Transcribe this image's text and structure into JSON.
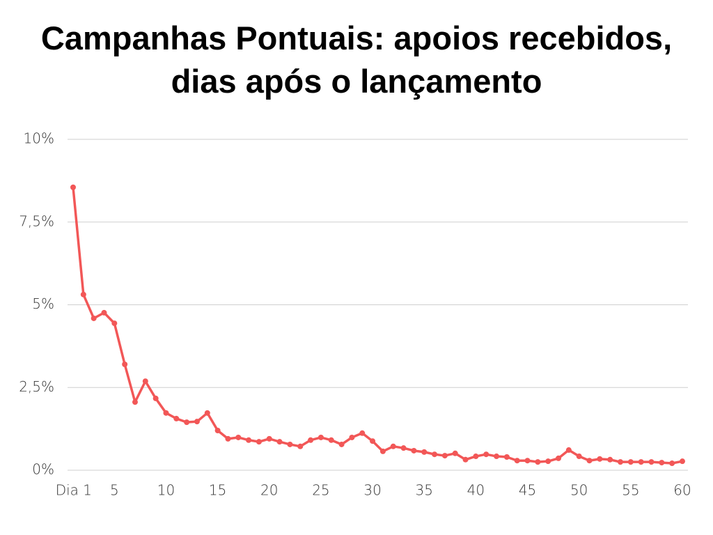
{
  "chart_data": {
    "type": "line",
    "title": "Campanhas Pontuais: apoios recebidos, dias após o lançamento",
    "x": [
      1,
      2,
      3,
      4,
      5,
      6,
      7,
      8,
      9,
      10,
      11,
      12,
      13,
      14,
      15,
      16,
      17,
      18,
      19,
      20,
      21,
      22,
      23,
      24,
      25,
      26,
      27,
      28,
      29,
      30,
      31,
      32,
      33,
      34,
      35,
      36,
      37,
      38,
      39,
      40,
      41,
      42,
      43,
      44,
      45,
      46,
      47,
      48,
      49,
      50,
      51,
      52,
      53,
      54,
      55,
      56,
      57,
      58,
      59,
      60
    ],
    "series": [
      {
        "color": "#f25757",
        "values": [
          8.55,
          5.31,
          4.59,
          4.76,
          4.44,
          3.2,
          2.06,
          2.69,
          2.17,
          1.73,
          1.56,
          1.45,
          1.47,
          1.73,
          1.2,
          0.95,
          0.99,
          0.91,
          0.86,
          0.95,
          0.86,
          0.78,
          0.72,
          0.91,
          0.99,
          0.91,
          0.78,
          0.99,
          1.12,
          0.88,
          0.57,
          0.72,
          0.67,
          0.59,
          0.55,
          0.48,
          0.44,
          0.51,
          0.32,
          0.42,
          0.48,
          0.42,
          0.4,
          0.29,
          0.29,
          0.25,
          0.27,
          0.36,
          0.61,
          0.42,
          0.29,
          0.34,
          0.32,
          0.25,
          0.25,
          0.25,
          0.25,
          0.23,
          0.21,
          0.27
        ]
      }
    ],
    "xlim": [
      1,
      60
    ],
    "xticks": [
      {
        "value": 1,
        "label": "Dia 1"
      },
      5,
      10,
      15,
      20,
      25,
      30,
      35,
      40,
      45,
      50,
      55,
      60
    ],
    "ylim": [
      0,
      10
    ],
    "yticks": [
      {
        "value": 0,
        "label": "0%"
      },
      {
        "value": 2.5,
        "label": "2,5%"
      },
      {
        "value": 5,
        "label": "5%"
      },
      {
        "value": 7.5,
        "label": "7,5%"
      },
      {
        "value": 10,
        "label": "10%"
      }
    ],
    "grid": true
  }
}
